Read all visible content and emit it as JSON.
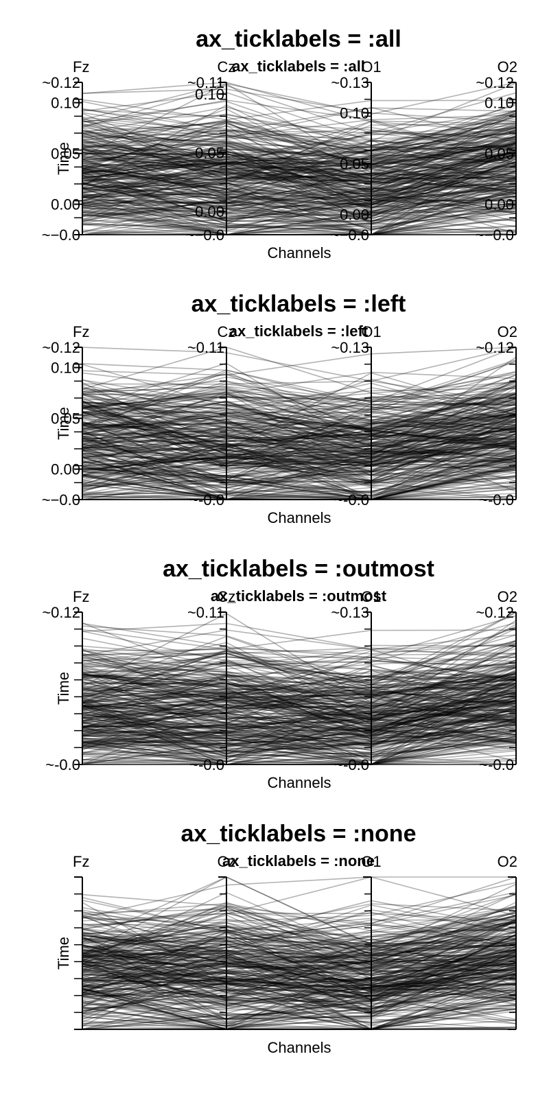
{
  "figure": {
    "ylabel": "Time",
    "xlabel": "Channels"
  },
  "chart_data": [
    {
      "type": "line",
      "title": "ax_ticklabels = :all",
      "subtitle": "ax_ticklabels = :all",
      "xlabel": "Channels",
      "ylabel": "Time",
      "categories": [
        "Fz",
        "Cz",
        "O1",
        "O2"
      ],
      "axes": [
        {
          "name": "Fz",
          "ylim": [
            -0.03,
            0.12
          ],
          "max_label": "~0.12",
          "min_label": "~−0.0",
          "ticks": [
            0.1,
            0.05,
            0.0
          ],
          "tick_labels": [
            "0.10",
            "0.05",
            "0.00"
          ],
          "show_labels": true
        },
        {
          "name": "Cz",
          "ylim": [
            -0.02,
            0.11
          ],
          "max_label": "~0.11",
          "min_label": "~−0.0",
          "ticks": [
            0.1,
            0.05,
            0.0
          ],
          "tick_labels": [
            "0.10",
            "0.05",
            "0.00"
          ],
          "show_labels": true
        },
        {
          "name": "O1",
          "ylim": [
            -0.02,
            0.13
          ],
          "max_label": "~0.13",
          "min_label": "~−0.0",
          "ticks": [
            0.1,
            0.05,
            0.0
          ],
          "tick_labels": [
            "0.10",
            "0.05",
            "0.00"
          ],
          "show_labels": true
        },
        {
          "name": "O2",
          "ylim": [
            -0.03,
            0.12
          ],
          "max_label": "~0.12",
          "min_label": "~−0.0",
          "ticks": [
            0.1,
            0.05,
            0.0
          ],
          "tick_labels": [
            "0.10",
            "0.05",
            "0.00"
          ],
          "show_labels": true
        }
      ],
      "series_count": 300,
      "line_color": "#000000",
      "line_opacity": 0.3
    },
    {
      "type": "line",
      "title": "ax_ticklabels = :left",
      "subtitle": "ax_ticklabels = :left",
      "xlabel": "Channels",
      "ylabel": "Time",
      "categories": [
        "Fz",
        "Cz",
        "O1",
        "O2"
      ],
      "axes": [
        {
          "name": "Fz",
          "ylim": [
            -0.03,
            0.12
          ],
          "max_label": "~0.12",
          "min_label": "~−0.0",
          "ticks": [
            0.1,
            0.05,
            0.0
          ],
          "tick_labels": [
            "0.10",
            "0.05",
            "0.00"
          ],
          "show_labels": true
        },
        {
          "name": "Cz",
          "ylim": [
            -0.02,
            0.11
          ],
          "max_label": "~0.11",
          "min_label": "~-0.0",
          "ticks": [],
          "tick_labels": [],
          "show_labels": false
        },
        {
          "name": "O1",
          "ylim": [
            -0.02,
            0.13
          ],
          "max_label": "~0.13",
          "min_label": "~-0.0",
          "ticks": [],
          "tick_labels": [],
          "show_labels": false
        },
        {
          "name": "O2",
          "ylim": [
            -0.03,
            0.12
          ],
          "max_label": "~0.12",
          "min_label": "~-0.0",
          "ticks": [],
          "tick_labels": [],
          "show_labels": false
        }
      ],
      "series_count": 300,
      "line_color": "#000000",
      "line_opacity": 0.3
    },
    {
      "type": "line",
      "title": "ax_ticklabels = :outmost",
      "subtitle": "ax_ticklabels = :outmost",
      "xlabel": "Channels",
      "ylabel": "Time",
      "categories": [
        "Fz",
        "Cz",
        "O1",
        "O2"
      ],
      "axes": [
        {
          "name": "Fz",
          "ylim": [
            -0.03,
            0.12
          ],
          "max_label": "~0.12",
          "min_label": "~-0.0",
          "ticks": [],
          "tick_labels": [],
          "show_labels": false
        },
        {
          "name": "Cz",
          "ylim": [
            -0.02,
            0.11
          ],
          "max_label": "~0.11",
          "min_label": "~-0.0",
          "ticks": [],
          "tick_labels": [],
          "show_labels": false
        },
        {
          "name": "O1",
          "ylim": [
            -0.02,
            0.13
          ],
          "max_label": "~0.13",
          "min_label": "~-0.0",
          "ticks": [],
          "tick_labels": [],
          "show_labels": false
        },
        {
          "name": "O2",
          "ylim": [
            -0.03,
            0.12
          ],
          "max_label": "~0.12",
          "min_label": "~-0.0",
          "ticks": [],
          "tick_labels": [],
          "show_labels": false
        }
      ],
      "series_count": 300,
      "line_color": "#000000",
      "line_opacity": 0.3
    },
    {
      "type": "line",
      "title": "ax_ticklabels = :none",
      "subtitle": "ax_ticklabels = :none",
      "xlabel": "Channels",
      "ylabel": "Time",
      "categories": [
        "Fz",
        "Cz",
        "O1",
        "O2"
      ],
      "axes": [
        {
          "name": "Fz",
          "ylim": [
            -0.03,
            0.12
          ],
          "max_label": "",
          "min_label": "",
          "ticks": [],
          "tick_labels": [],
          "show_labels": false
        },
        {
          "name": "Cz",
          "ylim": [
            -0.02,
            0.11
          ],
          "max_label": "",
          "min_label": "",
          "ticks": [],
          "tick_labels": [],
          "show_labels": false
        },
        {
          "name": "O1",
          "ylim": [
            -0.02,
            0.13
          ],
          "max_label": "",
          "min_label": "",
          "ticks": [],
          "tick_labels": [],
          "show_labels": false
        },
        {
          "name": "O2",
          "ylim": [
            -0.03,
            0.12
          ],
          "max_label": "",
          "min_label": "",
          "ticks": [],
          "tick_labels": [],
          "show_labels": false
        }
      ],
      "series_count": 300,
      "line_color": "#000000",
      "line_opacity": 0.3
    }
  ]
}
